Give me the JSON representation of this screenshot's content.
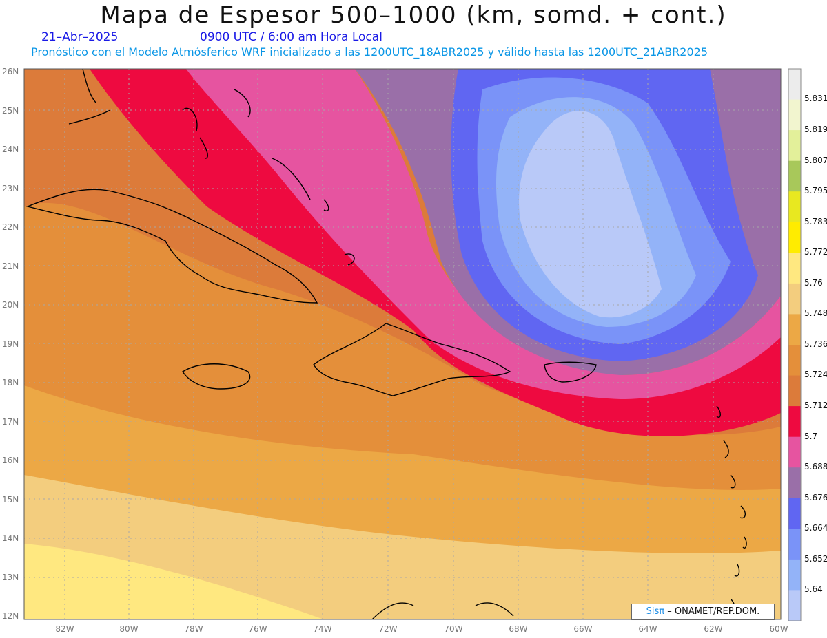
{
  "header": {
    "title": "Mapa de Espesor 500–1000 (km, somd. + cont.)",
    "date": "21–Abr–2025",
    "time": "0900 UTC / 6:00 am Hora Local",
    "subtitle": "Pronóstico con el Modelo Atmósferico WRF inicializado a las 1200UTC_18ABR2025 y válido hasta las  1200UTC_21ABR2025"
  },
  "axes": {
    "lat_labels": [
      "26N",
      "25N",
      "24N",
      "23N",
      "22N",
      "21N",
      "20N",
      "19N",
      "18N",
      "17N",
      "16N",
      "15N",
      "14N",
      "13N",
      "12N"
    ],
    "lon_labels": [
      "82W",
      "80W",
      "78W",
      "76W",
      "74W",
      "72W",
      "70W",
      "68W",
      "66W",
      "64W",
      "62W",
      "60W"
    ]
  },
  "colorbar": {
    "labels": [
      "5.831",
      "5.819",
      "5.807",
      "5.795",
      "5.783",
      "5.772",
      "5.76",
      "5.748",
      "5.736",
      "5.724",
      "5.712",
      "5.7",
      "5.688",
      "5.676",
      "5.664",
      "5.652",
      "5.64"
    ],
    "colors": [
      "#ececec",
      "#f2f5cf",
      "#e3f09a",
      "#a8c85a",
      "#e8e820",
      "#ffec00",
      "#ffe880",
      "#f3cd7e",
      "#eca845",
      "#e48f3a",
      "#dc7b3a",
      "#ee0a40",
      "#e654a0",
      "#9a6fa8",
      "#6066f2",
      "#7a93f8",
      "#93b3f8",
      "#b9c9f8"
    ]
  },
  "credit": {
    "sis": "Sisπ",
    "org": "– ONAMET/REP.DOM."
  }
}
